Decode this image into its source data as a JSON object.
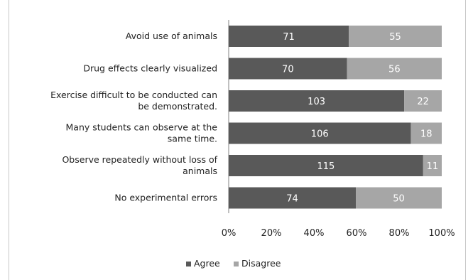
{
  "chart_data": {
    "type": "bar",
    "orientation": "horizontal",
    "stacked": "percent",
    "categories": [
      [
        "Avoid use of animals"
      ],
      [
        "Drug effects clearly visualized"
      ],
      [
        "Exercise difficult to be conducted can",
        "be demonstrated."
      ],
      [
        "Many students can observe at the",
        "same time."
      ],
      [
        "Observe repeatedly without loss of",
        "animals"
      ],
      [
        "No experimental errors"
      ]
    ],
    "series": [
      {
        "name": "Agree",
        "values": [
          71,
          70,
          103,
          106,
          115,
          74
        ],
        "color": "#595959"
      },
      {
        "name": "Disagree",
        "values": [
          55,
          56,
          22,
          18,
          11,
          50
        ],
        "color": "#a6a6a6"
      }
    ],
    "x_ticks": [
      "0%",
      "20%",
      "40%",
      "60%",
      "80%",
      "100%"
    ],
    "xlim": [
      0,
      100
    ],
    "grid": false,
    "legend": "bottom"
  }
}
